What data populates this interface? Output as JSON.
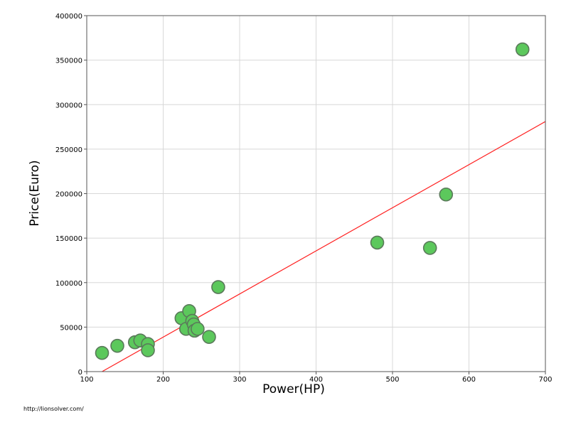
{
  "chart_data": {
    "type": "scatter",
    "xlabel": "Power(HP)",
    "ylabel": "Price(Euro)",
    "xlim": [
      100,
      700
    ],
    "ylim": [
      0,
      400000
    ],
    "x_ticks": [
      "100",
      "200",
      "300",
      "400",
      "500",
      "600",
      "700"
    ],
    "y_ticks": [
      "0",
      "50000",
      "100000",
      "150000",
      "200000",
      "250000",
      "300000",
      "350000",
      "400000"
    ],
    "grid": true,
    "legend": "none",
    "series": [
      {
        "points": [
          {
            "x": 120,
            "y": 21000
          },
          {
            "x": 140,
            "y": 29000
          },
          {
            "x": 163,
            "y": 33000
          },
          {
            "x": 170,
            "y": 35000
          },
          {
            "x": 180,
            "y": 31000
          },
          {
            "x": 180,
            "y": 24000
          },
          {
            "x": 224,
            "y": 60000
          },
          {
            "x": 230,
            "y": 48000
          },
          {
            "x": 234,
            "y": 68000
          },
          {
            "x": 238,
            "y": 57000
          },
          {
            "x": 240,
            "y": 53000
          },
          {
            "x": 241,
            "y": 46000
          },
          {
            "x": 245,
            "y": 48000
          },
          {
            "x": 260,
            "y": 39000
          },
          {
            "x": 272,
            "y": 95000
          },
          {
            "x": 480,
            "y": 145000
          },
          {
            "x": 549,
            "y": 139000
          },
          {
            "x": 570,
            "y": 199000
          },
          {
            "x": 670,
            "y": 362000
          }
        ]
      }
    ],
    "trendline": {
      "x": [
        120,
        700
      ],
      "y": [
        0,
        281000
      ]
    },
    "colors": {
      "point_fill": "#5cc85c",
      "point_stroke": "#5a7a5a",
      "trendline": "#ff2020",
      "grid": "#d8d8d8"
    }
  },
  "footer": {
    "url": "http://lionsolver.com/"
  }
}
